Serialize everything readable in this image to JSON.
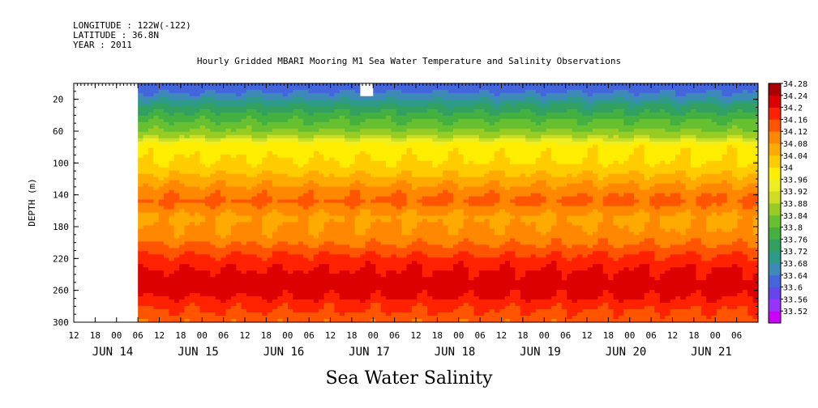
{
  "header": {
    "longitude": "LONGITUDE : 122W(-122)",
    "latitude": "LATITUDE : 36.8N",
    "year": "YEAR : 2011"
  },
  "chart_data": {
    "type": "heatmap",
    "title": "Hourly Gridded MBARI Mooring M1 Sea Water Temperature and Salinity Observations",
    "bottom_title": "Sea Water Salinity",
    "ylabel": "DEPTH (m)",
    "ylim": [
      300,
      0
    ],
    "y_ticks": [
      20,
      60,
      100,
      140,
      180,
      220,
      260,
      300
    ],
    "x_hours": [
      "12",
      "18",
      "00",
      "06",
      "12",
      "18",
      "00",
      "06",
      "12",
      "18",
      "00",
      "06",
      "12",
      "18",
      "00",
      "06",
      "12",
      "18",
      "00",
      "06",
      "12",
      "18",
      "00",
      "06",
      "12",
      "18",
      "00",
      "06",
      "12",
      "18",
      "00",
      "06"
    ],
    "x_days": [
      "JUN 14",
      "JUN 15",
      "JUN 16",
      "JUN 17",
      "JUN 18",
      "JUN 19",
      "JUN 20",
      "JUN 21"
    ],
    "colorbar": {
      "levels": [
        33.52,
        33.56,
        33.6,
        33.64,
        33.68,
        33.72,
        33.76,
        33.8,
        33.84,
        33.88,
        33.92,
        33.96,
        34,
        34.04,
        34.08,
        34.12,
        34.16,
        34.2,
        34.24,
        34.28
      ],
      "labels": [
        "34.28",
        "34.24",
        "34.2",
        "34.16",
        "34.12",
        "34.08",
        "34.04",
        "34",
        "33.96",
        "33.92",
        "33.88",
        "33.84",
        "33.8",
        "33.76",
        "33.72",
        "33.68",
        "33.64",
        "33.6",
        "33.56",
        "33.52"
      ],
      "colors": [
        "#cc00ff",
        "#9933ff",
        "#6644ee",
        "#4466dd",
        "#3d8ab8",
        "#2e9a8a",
        "#33a060",
        "#44b040",
        "#66c030",
        "#99cc22",
        "#ccdd22",
        "#eeee22",
        "#ffee00",
        "#ffcc00",
        "#ffaa00",
        "#ff8800",
        "#ff5500",
        "#ff2200",
        "#dd0000",
        "#aa0000"
      ]
    },
    "profile": {
      "depths": [
        10,
        20,
        30,
        40,
        50,
        60,
        70,
        80,
        90,
        100,
        110,
        120,
        130,
        140,
        150,
        160,
        170,
        180,
        190,
        200,
        210,
        220,
        230,
        240,
        250,
        260,
        270,
        280,
        290,
        300
      ],
      "salinity": [
        33.66,
        33.7,
        33.76,
        33.8,
        33.84,
        33.87,
        33.92,
        34.02,
        34.03,
        34.04,
        34.06,
        34.09,
        34.12,
        34.15,
        34.17,
        34.14,
        34.11,
        34.12,
        34.13,
        34.15,
        34.18,
        34.21,
        34.23,
        34.25,
        34.26,
        34.26,
        34.24,
        34.21,
        34.19,
        34.17
      ]
    },
    "data_start_day": 0.25,
    "missing_box": {
      "x_day": [
        2.85,
        3.0
      ],
      "depth": [
        0,
        16
      ]
    }
  }
}
